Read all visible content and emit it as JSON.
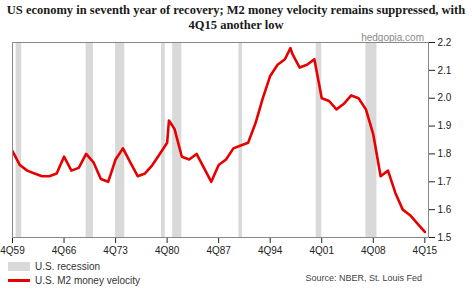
{
  "chart_data": {
    "type": "line",
    "title": "US economy in seventh year of recovery; M2 money velocity remains suppressed, with 4Q15 another low",
    "watermark": "hedgopia.com",
    "source": "Source: NBER, St. Louis Fed",
    "x": [
      1959.75,
      1960.75,
      1961.75,
      1962.75,
      1963.75,
      1964.75,
      1965.75,
      1966.75,
      1967.75,
      1968.75,
      1969.75,
      1970.75,
      1971.75,
      1972.75,
      1973.75,
      1974.75,
      1975.75,
      1976.75,
      1977.75,
      1978.75,
      1979.75,
      1980.75,
      1981.0,
      1981.75,
      1982.75,
      1983.75,
      1984.75,
      1985.75,
      1986.75,
      1987.75,
      1988.75,
      1989.75,
      1990.75,
      1991.75,
      1992.75,
      1993.75,
      1994.75,
      1995.75,
      1996.75,
      1997.5,
      1997.75,
      1998.75,
      1999.75,
      2000.75,
      2001.75,
      2002.75,
      2003.75,
      2004.75,
      2005.75,
      2006.75,
      2007.75,
      2008.75,
      2009.75,
      2010.75,
      2011.75,
      2012.75,
      2013.75,
      2014.75,
      2015.75
    ],
    "series": [
      {
        "name": "U.S. recession",
        "type": "area",
        "color": "#d9d9d9",
        "ranges": [
          [
            1960.25,
            1961.0
          ],
          [
            1969.75,
            1970.75
          ],
          [
            1973.75,
            1975.0
          ],
          [
            1980.0,
            1980.5
          ],
          [
            1981.5,
            1982.75
          ],
          [
            1990.5,
            1991.0
          ],
          [
            2001.0,
            2001.75
          ],
          [
            2007.75,
            2009.25
          ]
        ]
      },
      {
        "name": "U.S. M2 money velocity",
        "type": "line",
        "color": "#e60000",
        "values": [
          1.81,
          1.76,
          1.74,
          1.73,
          1.72,
          1.72,
          1.73,
          1.79,
          1.74,
          1.75,
          1.8,
          1.77,
          1.71,
          1.7,
          1.78,
          1.82,
          1.77,
          1.72,
          1.73,
          1.76,
          1.8,
          1.84,
          1.92,
          1.89,
          1.79,
          1.78,
          1.8,
          1.75,
          1.7,
          1.76,
          1.78,
          1.82,
          1.83,
          1.84,
          1.91,
          2.0,
          2.08,
          2.12,
          2.14,
          2.18,
          2.16,
          2.11,
          2.12,
          2.14,
          2.0,
          1.99,
          1.96,
          1.98,
          2.01,
          2.0,
          1.96,
          1.87,
          1.72,
          1.74,
          1.66,
          1.6,
          1.58,
          1.55,
          1.52
        ]
      }
    ],
    "xlim": [
      1959.75,
      2016.25
    ],
    "xticks": [
      {
        "value": 1959.75,
        "label": "4Q59"
      },
      {
        "value": 1966.75,
        "label": "4Q66"
      },
      {
        "value": 1973.75,
        "label": "4Q73"
      },
      {
        "value": 1980.75,
        "label": "4Q80"
      },
      {
        "value": 1987.75,
        "label": "4Q87"
      },
      {
        "value": 1994.75,
        "label": "4Q94"
      },
      {
        "value": 2001.75,
        "label": "4Q01"
      },
      {
        "value": 2008.75,
        "label": "4Q08"
      },
      {
        "value": 2015.75,
        "label": "4Q15"
      }
    ],
    "ylim": [
      1.5,
      2.2
    ],
    "yticks": [
      1.5,
      1.6,
      1.7,
      1.8,
      1.9,
      {
        "value": 2,
        "label": "2.0"
      },
      2.1,
      2.2
    ],
    "grid": false
  }
}
